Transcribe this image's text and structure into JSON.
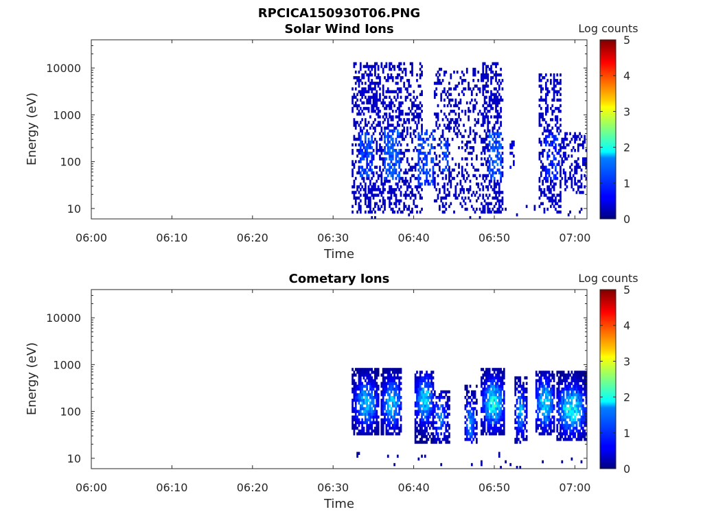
{
  "figure": {
    "title": "RPCICA150930T06.PNG"
  },
  "chart_data": [
    {
      "type": "heatmap",
      "title": "Solar Wind Ions",
      "xlabel": "Time",
      "ylabel": "Energy (eV)",
      "x_ticks": [
        "06:00",
        "06:10",
        "06:20",
        "06:30",
        "06:40",
        "06:50",
        "07:00"
      ],
      "x_range_minutes": [
        0,
        61.5
      ],
      "y_scale": "log",
      "y_ticks": [
        "10",
        "100",
        "1000",
        "10000"
      ],
      "y_range": [
        6,
        40000
      ],
      "colorbar": {
        "label": "Log counts",
        "ticks": [
          "0",
          "1",
          "2",
          "3",
          "4",
          "5"
        ],
        "range": [
          0,
          5
        ],
        "colormap": "jet"
      },
      "data_extent_minutes": [
        32.3,
        61.5
      ],
      "blocks": [
        {
          "t": [
            32.3,
            33.2
          ],
          "e": [
            8,
            14000
          ],
          "level": 0.3,
          "density": 0.35
        },
        {
          "t": [
            33.0,
            35.5
          ],
          "e": [
            8,
            14000
          ],
          "level": 0.35,
          "density": 0.45
        },
        {
          "t": [
            33.2,
            34.8
          ],
          "e": [
            50,
            400
          ],
          "level": 0.9,
          "density": 0.55
        },
        {
          "t": [
            35.5,
            38.5
          ],
          "e": [
            8,
            14000
          ],
          "level": 0.35,
          "density": 0.45
        },
        {
          "t": [
            36.2,
            38.2
          ],
          "e": [
            40,
            500
          ],
          "level": 1.0,
          "density": 0.55
        },
        {
          "t": [
            38.5,
            41.0
          ],
          "e": [
            8,
            14000
          ],
          "level": 0.3,
          "density": 0.35
        },
        {
          "t": [
            40.5,
            42.5
          ],
          "e": [
            30,
            500
          ],
          "level": 0.9,
          "density": 0.5
        },
        {
          "t": [
            42.5,
            45.0
          ],
          "e": [
            8,
            10000
          ],
          "level": 0.3,
          "density": 0.3
        },
        {
          "t": [
            43.2,
            44.3
          ],
          "e": [
            60,
            300
          ],
          "level": 0.9,
          "density": 0.45
        },
        {
          "t": [
            45.0,
            48.5
          ],
          "e": [
            8,
            10000
          ],
          "level": 0.3,
          "density": 0.25
        },
        {
          "t": [
            48.5,
            51.0
          ],
          "e": [
            8,
            14000
          ],
          "level": 0.35,
          "density": 0.45
        },
        {
          "t": [
            49.2,
            50.8
          ],
          "e": [
            40,
            400
          ],
          "level": 1.0,
          "density": 0.55
        },
        {
          "t": [
            51.8,
            52.4
          ],
          "e": [
            60,
            300
          ],
          "level": 0.5,
          "density": 0.3
        },
        {
          "t": [
            55.5,
            58.2
          ],
          "e": [
            8,
            8000
          ],
          "level": 0.35,
          "density": 0.4
        },
        {
          "t": [
            56.2,
            58.0
          ],
          "e": [
            40,
            400
          ],
          "level": 0.8,
          "density": 0.5
        },
        {
          "t": [
            58.2,
            61.5
          ],
          "e": [
            20,
            400
          ],
          "level": 0.35,
          "density": 0.35
        }
      ]
    },
    {
      "type": "heatmap",
      "title": "Cometary Ions",
      "xlabel": "Time",
      "ylabel": "Energy (eV)",
      "x_ticks": [
        "06:00",
        "06:10",
        "06:20",
        "06:30",
        "06:40",
        "06:50",
        "07:00"
      ],
      "x_range_minutes": [
        0,
        61.5
      ],
      "y_scale": "log",
      "y_ticks": [
        "10",
        "100",
        "1000",
        "10000"
      ],
      "y_range": [
        6,
        40000
      ],
      "colorbar": {
        "label": "Log counts",
        "ticks": [
          "0",
          "1",
          "2",
          "3",
          "4",
          "5"
        ],
        "range": [
          0,
          5
        ],
        "colormap": "jet"
      },
      "data_extent_minutes": [
        32.3,
        61.5
      ],
      "blocks": [
        {
          "t": [
            32.3,
            35.6
          ],
          "e": [
            30,
            800
          ],
          "level": 1.5,
          "peak": [
            34.0,
            150
          ],
          "density": 0.75
        },
        {
          "t": [
            35.8,
            38.5
          ],
          "e": [
            30,
            800
          ],
          "level": 1.6,
          "peak": [
            37.2,
            150
          ],
          "density": 0.75
        },
        {
          "t": [
            40.0,
            42.5
          ],
          "e": [
            20,
            700
          ],
          "level": 1.7,
          "peak": [
            41.3,
            180
          ],
          "density": 0.75
        },
        {
          "t": [
            42.5,
            44.5
          ],
          "e": [
            20,
            300
          ],
          "level": 1.2,
          "peak": [
            43.2,
            80
          ],
          "density": 0.6
        },
        {
          "t": [
            46.2,
            47.8
          ],
          "e": [
            20,
            350
          ],
          "level": 1.3,
          "peak": [
            46.9,
            60
          ],
          "density": 0.6
        },
        {
          "t": [
            48.3,
            51.2
          ],
          "e": [
            30,
            900
          ],
          "level": 1.9,
          "peak": [
            49.8,
            150
          ],
          "density": 0.8
        },
        {
          "t": [
            52.5,
            54.0
          ],
          "e": [
            20,
            600
          ],
          "level": 1.4,
          "peak": [
            53.2,
            100
          ],
          "density": 0.65
        },
        {
          "t": [
            55.0,
            57.5
          ],
          "e": [
            30,
            700
          ],
          "level": 1.8,
          "peak": [
            56.2,
            150
          ],
          "density": 0.75
        },
        {
          "t": [
            57.6,
            61.5
          ],
          "e": [
            25,
            700
          ],
          "level": 1.9,
          "peak": [
            59.5,
            110
          ],
          "density": 0.8
        }
      ]
    }
  ]
}
